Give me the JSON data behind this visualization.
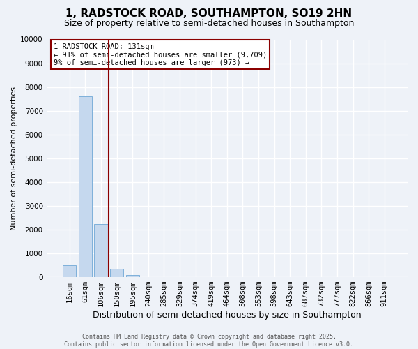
{
  "title": "1, RADSTOCK ROAD, SOUTHAMPTON, SO19 2HN",
  "subtitle": "Size of property relative to semi-detached houses in Southampton",
  "xlabel": "Distribution of semi-detached houses by size in Southampton",
  "ylabel": "Number of semi-detached properties",
  "categories": [
    "16sqm",
    "61sqm",
    "106sqm",
    "150sqm",
    "195sqm",
    "240sqm",
    "285sqm",
    "329sqm",
    "374sqm",
    "419sqm",
    "464sqm",
    "508sqm",
    "553sqm",
    "598sqm",
    "643sqm",
    "687sqm",
    "732sqm",
    "777sqm",
    "822sqm",
    "866sqm",
    "911sqm"
  ],
  "values": [
    490,
    7590,
    2230,
    355,
    80,
    0,
    0,
    0,
    0,
    0,
    0,
    0,
    0,
    0,
    0,
    0,
    0,
    0,
    0,
    0,
    0
  ],
  "bar_color": "#c5d8ee",
  "bar_edge_color": "#6fa8d6",
  "vline_x": 2.5,
  "vline_color": "#8b0000",
  "annotation_line1": "1 RADSTOCK ROAD: 131sqm",
  "annotation_line2": "← 91% of semi-detached houses are smaller (9,709)",
  "annotation_line3": "9% of semi-detached houses are larger (973) →",
  "annotation_box_color": "#8b0000",
  "annotation_bg": "#ffffff",
  "ylim": [
    0,
    10000
  ],
  "yticks": [
    0,
    1000,
    2000,
    3000,
    4000,
    5000,
    6000,
    7000,
    8000,
    9000,
    10000
  ],
  "footer_line1": "Contains HM Land Registry data © Crown copyright and database right 2025.",
  "footer_line2": "Contains public sector information licensed under the Open Government Licence v3.0.",
  "bg_color": "#eef2f8",
  "grid_color": "#ffffff",
  "title_fontsize": 11,
  "subtitle_fontsize": 9,
  "ylabel_fontsize": 8,
  "xlabel_fontsize": 9,
  "tick_fontsize": 7.5,
  "footer_fontsize": 6,
  "annotation_fontsize": 7.5
}
